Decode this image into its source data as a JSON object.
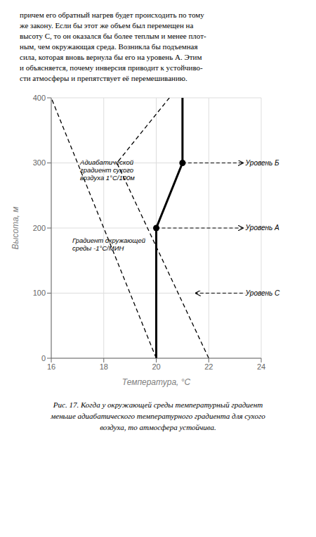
{
  "chart_data": {
    "type": "line",
    "xlabel": "Температура, °C",
    "ylabel": "Высота, м",
    "xlim": [
      16,
      24
    ],
    "ylim": [
      0,
      400
    ],
    "xticks": [
      16,
      18,
      20,
      22,
      24
    ],
    "yticks": [
      0,
      100,
      200,
      300,
      400
    ],
    "grid": true,
    "text_above": [
      "причем его обратный нагрев будет происходить по тому",
      "же закону. Если бы этот же объем был перемещен на",
      "высоту C, то он оказался бы более теплым и менее плот-",
      "ным, чем окружающая среда. Возникла бы подъемная",
      "сила, которая вновь вернула бы его на уровень A. Этим",
      "и объясняется, почему инверсия приводит к устойчиво-",
      "сти атмосферы и препятствует её перемешиванию."
    ],
    "caption": [
      "Рис. 17. Когда у окружающей среды температурный градиент",
      "меньше адиабатического температурного градиента для сухого",
      "воздуха, то атмосфера устойчива."
    ],
    "series": [
      {
        "type": "line",
        "x": [
          20.0,
          16.0
        ],
        "values": [
          0,
          400
        ],
        "color": "black",
        "line_style": "dashed"
      },
      {
        "type": "line",
        "x": [
          22.0,
          18.5,
          20.5
        ],
        "values": [
          0,
          300,
          400
        ],
        "color": "black",
        "line_style": "dashed"
      },
      {
        "type": "line",
        "x": [
          20.0,
          20.0,
          21.0,
          21.0
        ],
        "values": [
          0,
          200,
          300,
          400
        ],
        "color": "black",
        "line_style": "solid"
      },
      {
        "type": "scatter",
        "x": [
          20.0,
          21.0
        ],
        "values": [
          200,
          300
        ],
        "color": "black",
        "marker": "o"
      }
    ],
    "annotations": [
      {
        "text": "Уровень А",
        "x": 23.4,
        "y": 200,
        "arrow": {
          "from": [
            20.0,
            200
          ],
          "to": [
            23.3,
            200
          ]
        }
      },
      {
        "text": "Уровень Б",
        "x": 23.4,
        "y": 300,
        "arrow": {
          "from": [
            21.0,
            300
          ],
          "to": [
            23.3,
            300
          ]
        }
      },
      {
        "text": "Уровень С",
        "x": 23.4,
        "y": 100,
        "arrow": {
          "from": [
            23.3,
            100
          ],
          "to": [
            21.5,
            100
          ]
        }
      },
      {
        "text": "Адиабатической\nградиент сухого\nвоздуха 1°С/100м",
        "x": 17.1,
        "y": 305
      },
      {
        "text": "Градиент окружающей\nсреды -1°С/МИН",
        "x": 16.8,
        "y": 185
      }
    ]
  }
}
